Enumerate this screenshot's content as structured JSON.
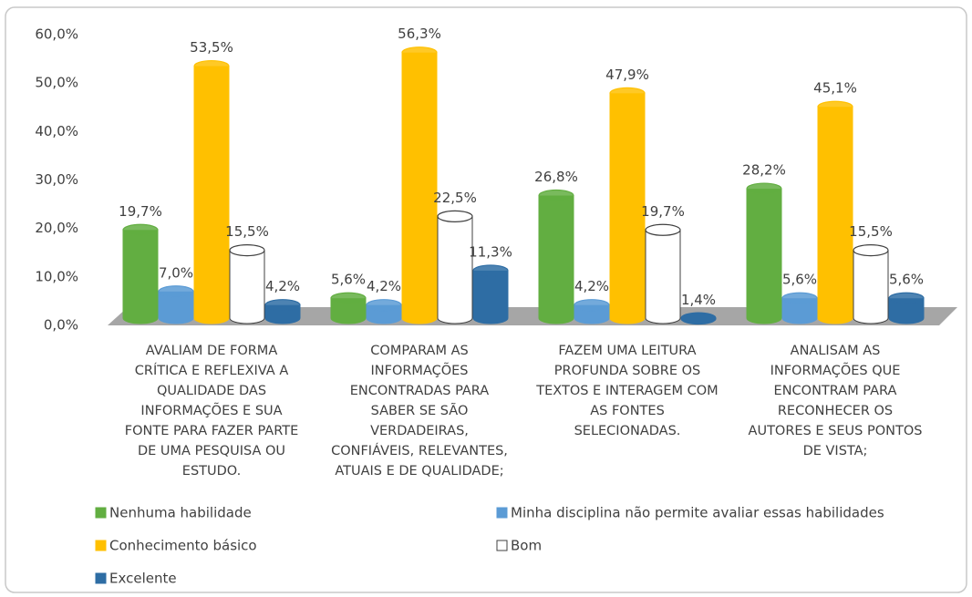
{
  "chart_data": {
    "type": "bar3d",
    "categories": [
      "AVALIAM DE FORMA CRÍTICA E REFLEXIVA A QUALIDADE DAS INFORMAÇÕES E SUA FONTE PARA FAZER PARTE DE UMA PESQUISA OU ESTUDO.",
      "COMPARAM AS INFORMAÇÕES ENCONTRADAS PARA SABER SE SÃO VERDADEIRAS, CONFIÁVEIS, RELEVANTES, ATUAIS E DE QUALIDADE;",
      "FAZEM UMA LEITURA PROFUNDA SOBRE OS TEXTOS E INTERAGEM COM AS FONTES SELECIONADAS.",
      "ANALISAM AS INFORMAÇÕES QUE ENCONTRAM PARA RECONHECER OS AUTORES E SEUS PONTOS DE VISTA;"
    ],
    "series": [
      {
        "name": "Nenhuma habilidade",
        "color": "#62ae41",
        "values": [
          19.7,
          5.6,
          26.8,
          28.2
        ],
        "value_labels": [
          "19,7%",
          "5,6%",
          "26,8%",
          "28,2%"
        ]
      },
      {
        "name": "Minha disciplina não permite avaliar essas habilidades",
        "color": "#5b9bd5",
        "values": [
          7.0,
          4.2,
          4.2,
          5.6
        ],
        "value_labels": [
          "7,0%",
          "4,2%",
          "4,2%",
          "5,6%"
        ]
      },
      {
        "name": "Conhecimento básico",
        "color": "#ffc000",
        "values": [
          53.5,
          56.3,
          47.9,
          45.1
        ],
        "value_labels": [
          "53,5%",
          "56,3%",
          "47,9%",
          "45,1%"
        ]
      },
      {
        "name": "Bom",
        "color": "#ffffff",
        "values": [
          15.5,
          22.5,
          19.7,
          15.5
        ],
        "value_labels": [
          "15,5%",
          "22,5%",
          "19,7%",
          "15,5%"
        ]
      },
      {
        "name": "Excelente",
        "color": "#2e6da4",
        "values": [
          4.2,
          11.3,
          1.4,
          5.6
        ],
        "value_labels": [
          "4,2%",
          "11,3%",
          "1,4%",
          "5,6%"
        ]
      }
    ],
    "ylim": [
      0,
      60
    ],
    "yticks": [
      {
        "value": 0,
        "label": "0,0%"
      },
      {
        "value": 10,
        "label": "10,0%"
      },
      {
        "value": 20,
        "label": "20,0%"
      },
      {
        "value": 30,
        "label": "30,0%"
      },
      {
        "value": 40,
        "label": "40,0%"
      },
      {
        "value": 50,
        "label": "50,0%"
      },
      {
        "value": 60,
        "label": "60,0%"
      }
    ],
    "legend": "bottom"
  }
}
